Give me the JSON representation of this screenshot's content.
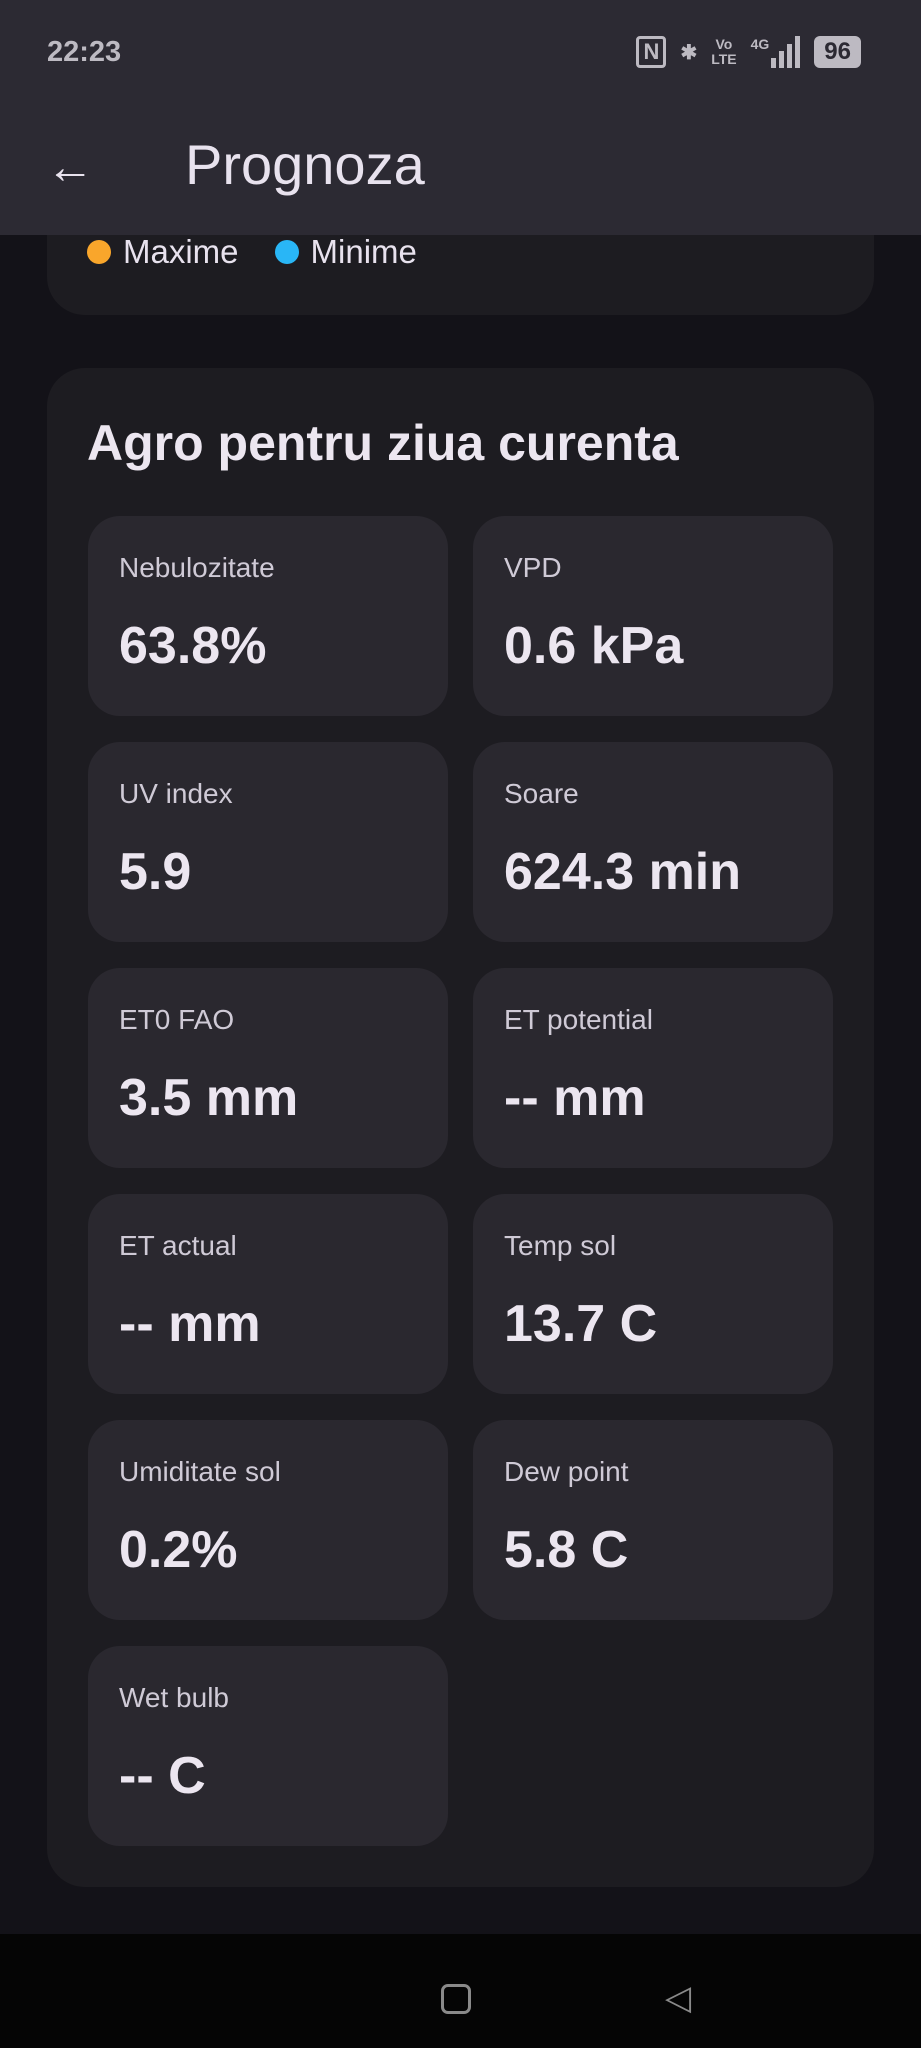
{
  "status_bar": {
    "time": "22:23",
    "nfc": "N",
    "volte": [
      "Vo",
      "LTE"
    ],
    "network": "4G",
    "battery": "96"
  },
  "app_bar": {
    "title": "Prognoza",
    "back_icon": "arrow-left-icon"
  },
  "legend": {
    "items": [
      {
        "label": "Maxime",
        "color": "#f9a62b"
      },
      {
        "label": "Minime",
        "color": "#29b6f6"
      }
    ]
  },
  "agro": {
    "title": "Agro pentru ziua curenta",
    "tiles": [
      {
        "label": "Nebulozitate",
        "value": "63.8%"
      },
      {
        "label": "VPD",
        "value": "0.6 kPa"
      },
      {
        "label": "UV index",
        "value": "5.9"
      },
      {
        "label": "Soare",
        "value": "624.3 min"
      },
      {
        "label": "ET0 FAO",
        "value": "3.5 mm"
      },
      {
        "label": "ET potential",
        "value": "-- mm"
      },
      {
        "label": "ET actual",
        "value": "-- mm"
      },
      {
        "label": "Temp sol",
        "value": "13.7 C"
      },
      {
        "label": "Umiditate sol",
        "value": "0.2%"
      },
      {
        "label": "Dew point",
        "value": "5.8 C"
      },
      {
        "label": "Wet bulb",
        "value": "-- C"
      }
    ]
  }
}
